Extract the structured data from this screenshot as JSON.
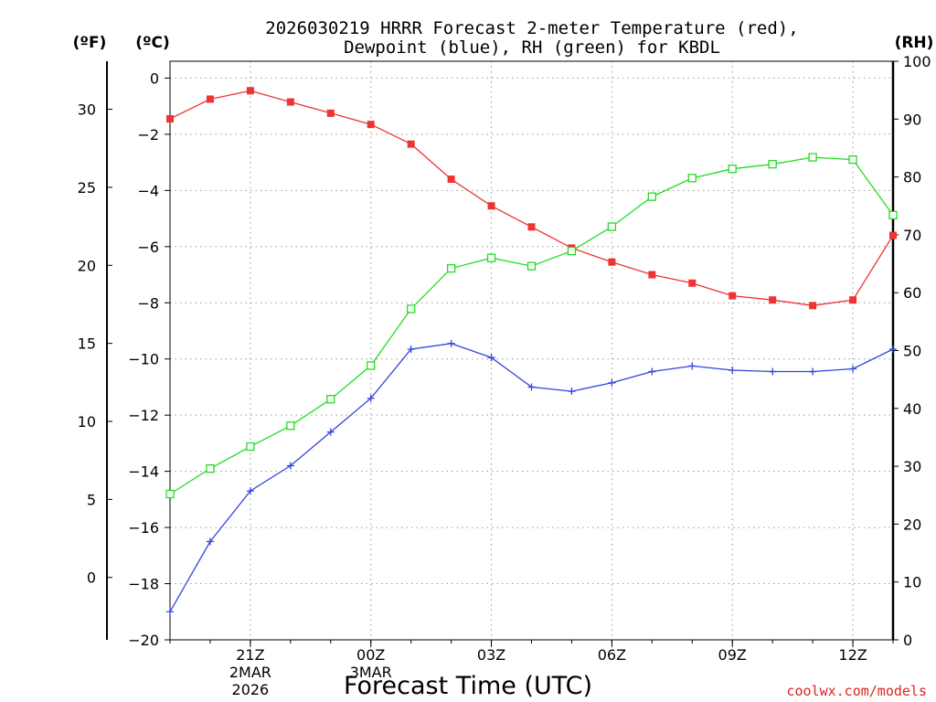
{
  "chart_data": {
    "type": "line",
    "title_line1": "2026030219 HRRR Forecast 2-meter Temperature (red),",
    "title_line2": "Dewpoint (blue), RH (green) for KBDL",
    "xlabel": "Forecast Time (UTC)",
    "credit": "coolwx.com/models",
    "axis_labels": {
      "fahrenheit": "(ºF)",
      "celsius": "(ºC)",
      "rh": "(RH)"
    },
    "x_hours": [
      -2,
      -1,
      0,
      1,
      2,
      3,
      4,
      5,
      6,
      7,
      8,
      9,
      10,
      11,
      12,
      13,
      14,
      15,
      16
    ],
    "x_ticks": [
      {
        "hour": 0,
        "label": "21Z",
        "sub1": "2MAR",
        "sub2": "2026"
      },
      {
        "hour": 3,
        "label": "00Z",
        "sub1": "3MAR",
        "sub2": ""
      },
      {
        "hour": 6,
        "label": "03Z",
        "sub1": "",
        "sub2": ""
      },
      {
        "hour": 9,
        "label": "06Z",
        "sub1": "",
        "sub2": ""
      },
      {
        "hour": 12,
        "label": "09Z",
        "sub1": "",
        "sub2": ""
      },
      {
        "hour": 15,
        "label": "12Z",
        "sub1": "",
        "sub2": ""
      }
    ],
    "xlim": [
      -2,
      16
    ],
    "celsius_axis": {
      "ylim": [
        -20,
        0.6
      ],
      "ticks": [
        "-20",
        "-18",
        "-16",
        "-14",
        "-12",
        "-10",
        "-8",
        "-6",
        "-4",
        "-2",
        "0"
      ]
    },
    "fahrenheit_axis": {
      "ticks": [
        "0",
        "5",
        "10",
        "15",
        "20",
        "25",
        "30"
      ]
    },
    "rh_axis": {
      "ylim": [
        0,
        100
      ],
      "ticks": [
        "0",
        "10",
        "20",
        "30",
        "40",
        "50",
        "60",
        "70",
        "80",
        "90",
        "100"
      ]
    },
    "series": [
      {
        "name": "2-meter Temperature",
        "units": "C",
        "color": "#ee3333",
        "marker": "filled-square",
        "values": [
          -1.45,
          -0.75,
          -0.45,
          -0.85,
          -1.25,
          -1.65,
          -2.35,
          -3.6,
          -4.55,
          -5.3,
          -6.05,
          -6.55,
          -7.0,
          -7.3,
          -7.75,
          -7.9,
          -8.1,
          -7.9,
          -5.6
        ]
      },
      {
        "name": "Dewpoint",
        "units": "C",
        "color": "#3344dd",
        "marker": "plus",
        "values": [
          -19.0,
          -16.5,
          -14.7,
          -13.8,
          -12.6,
          -11.4,
          -9.65,
          -9.45,
          -9.95,
          -11.0,
          -11.15,
          -10.85,
          -10.45,
          -10.25,
          -10.4,
          -10.45,
          -10.45,
          -10.35,
          -9.65
        ]
      },
      {
        "name": "RH",
        "units": "%",
        "color": "#22dd22",
        "marker": "open-square",
        "values": [
          25.2,
          29.6,
          33.4,
          37.0,
          41.6,
          47.4,
          57.2,
          64.2,
          66.0,
          64.6,
          67.2,
          71.4,
          76.6,
          79.8,
          81.4,
          82.2,
          83.4,
          83.0,
          73.4
        ]
      }
    ]
  }
}
